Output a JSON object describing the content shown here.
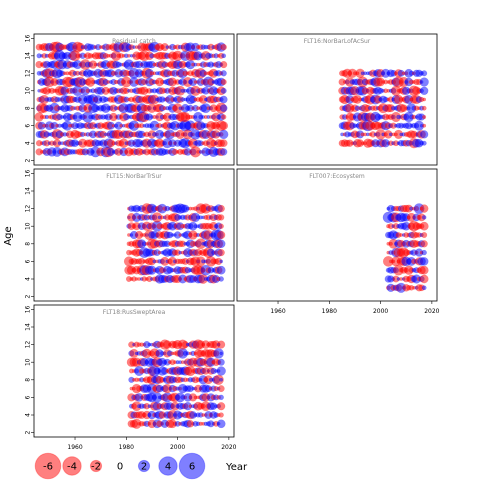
{
  "chart_data": {
    "type": "scatter",
    "description": "Bubble plot of residuals by year and age",
    "ylabel": "Age",
    "xlabel": "Year",
    "xlim": [
      1944,
      2022
    ],
    "ylim": [
      1.5,
      16.5
    ],
    "xticks": [
      1960,
      1980,
      2000,
      2020
    ],
    "yticks": [
      2,
      4,
      6,
      8,
      10,
      12,
      14,
      16
    ],
    "colors": {
      "positive": "#0000ff",
      "negative": "#ff0000"
    },
    "legend": {
      "placement": "bottom-left",
      "values": [
        "-6",
        "-4",
        "-2",
        "0",
        "2",
        "4",
        "6"
      ]
    },
    "panels": [
      {
        "title": "Residual catch",
        "years": [
          1946,
          2018
        ],
        "ages": [
          3,
          15
        ],
        "seed": 11
      },
      {
        "title": "FLT16:NorBarLofAcSur",
        "years": [
          1985,
          2017
        ],
        "ages": [
          4,
          12
        ],
        "seed": 23
      },
      {
        "title": "FLT15:NorBarTrSur",
        "years": [
          1981,
          2017
        ],
        "ages": [
          4,
          12
        ],
        "seed": 37
      },
      {
        "title": "FLT007:Ecosystem",
        "years": [
          2003,
          2017
        ],
        "ages": [
          3,
          12
        ],
        "seed": 41
      },
      {
        "title": "FLT18:RusSweptArea",
        "years": [
          1982,
          2017
        ],
        "ages": [
          3,
          12
        ],
        "seed": 53
      }
    ]
  }
}
